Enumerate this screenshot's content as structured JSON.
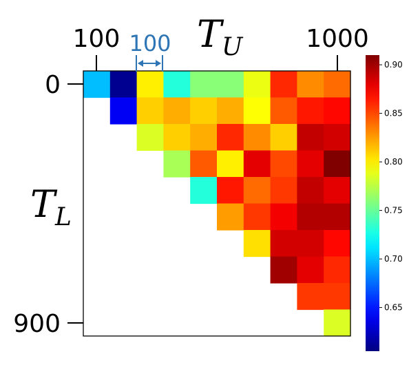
{
  "chart_data": {
    "type": "heatmap",
    "x_axis": {
      "title": "T",
      "title_subscript": "U",
      "tick_labels": [
        "100",
        "1000"
      ]
    },
    "y_axis": {
      "title": "T",
      "title_subscript": "L",
      "tick_labels": [
        "0",
        "900"
      ]
    },
    "annotation": {
      "text": "100",
      "color": "#2e75b6"
    },
    "colorbar": {
      "colormap": "jet",
      "range": [
        0.605,
        0.91
      ],
      "ticks": [
        "0.65",
        "0.70",
        "0.75",
        "0.80",
        "0.85",
        "0.90"
      ],
      "tick_values": [
        0.65,
        0.7,
        0.75,
        0.8,
        0.85,
        0.9
      ]
    },
    "values": [
      [
        0.7,
        0.61,
        0.8,
        0.73,
        0.76,
        0.76,
        0.79,
        0.86,
        0.83,
        0.84
      ],
      [
        null,
        0.64,
        0.81,
        0.82,
        0.81,
        0.82,
        0.795,
        0.845,
        0.865,
        0.87
      ],
      [
        null,
        null,
        0.785,
        0.81,
        0.82,
        0.86,
        0.83,
        0.81,
        0.89,
        0.885
      ],
      [
        null,
        null,
        null,
        0.77,
        0.845,
        0.8,
        0.88,
        0.85,
        0.88,
        0.91
      ],
      [
        null,
        null,
        null,
        null,
        0.73,
        0.865,
        0.84,
        0.855,
        0.89,
        0.88
      ],
      [
        null,
        null,
        null,
        null,
        null,
        0.825,
        0.855,
        0.875,
        0.895,
        0.895
      ],
      [
        null,
        null,
        null,
        null,
        null,
        null,
        0.805,
        0.885,
        0.885,
        0.87
      ],
      [
        null,
        null,
        null,
        null,
        null,
        null,
        null,
        0.9,
        0.88,
        0.86
      ],
      [
        null,
        null,
        null,
        null,
        null,
        null,
        null,
        null,
        0.855,
        0.855
      ],
      [
        null,
        null,
        null,
        null,
        null,
        null,
        null,
        null,
        null,
        0.785
      ]
    ]
  }
}
